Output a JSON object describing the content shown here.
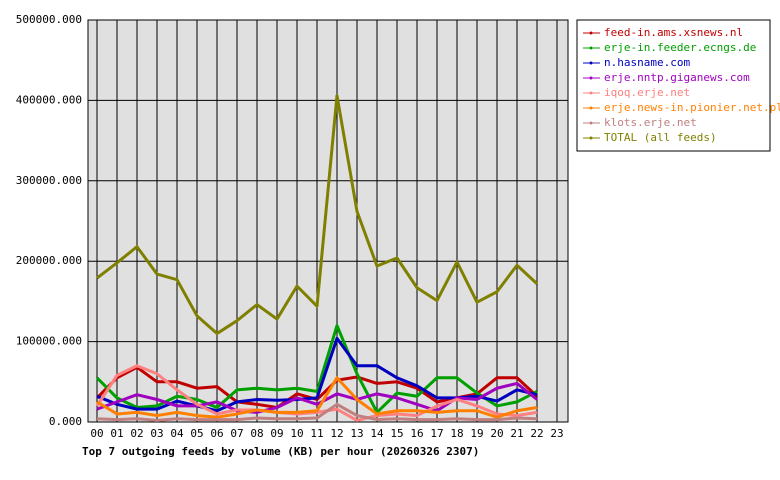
{
  "chart_data": {
    "type": "line",
    "title": "Top 7 outgoing feeds by volume (KB) per hour (20260326 2307)",
    "categories": [
      "00",
      "01",
      "02",
      "03",
      "04",
      "05",
      "06",
      "07",
      "08",
      "09",
      "10",
      "11",
      "12",
      "13",
      "14",
      "15",
      "16",
      "17",
      "18",
      "19",
      "20",
      "21",
      "22",
      "23"
    ],
    "ylim": [
      0,
      500000
    ],
    "yticks": [
      {
        "value": 0,
        "label": "0.000"
      },
      {
        "value": 100000,
        "label": "100000.000"
      },
      {
        "value": 200000,
        "label": "200000.000"
      },
      {
        "value": 300000,
        "label": "300000.000"
      },
      {
        "value": 400000,
        "label": "400000.000"
      },
      {
        "value": 500000,
        "label": "500000.000"
      }
    ],
    "grid": true,
    "legend": "right",
    "series": [
      {
        "name": "feed-in.ams.xsnews.nl",
        "color": "#c00000",
        "values": [
          30000,
          55000,
          68000,
          50000,
          50000,
          42000,
          44000,
          25000,
          22000,
          18000,
          35000,
          28000,
          52000,
          56000,
          48000,
          50000,
          42000,
          25000,
          30000,
          35000,
          55000,
          55000,
          32000,
          null
        ]
      },
      {
        "name": "erje-in.feeder.ecngs.de",
        "color": "#00a000",
        "values": [
          55000,
          30000,
          18000,
          20000,
          32000,
          28000,
          18000,
          40000,
          42000,
          40000,
          42000,
          38000,
          120000,
          60000,
          12000,
          36000,
          32000,
          55000,
          55000,
          36000,
          20000,
          25000,
          38000,
          null
        ]
      },
      {
        "name": "n.hasname.com",
        "color": "#0000c0",
        "values": [
          32000,
          22000,
          16000,
          16000,
          26000,
          20000,
          14000,
          25000,
          28000,
          27000,
          28000,
          30000,
          104000,
          70000,
          70000,
          55000,
          45000,
          30000,
          30000,
          32000,
          26000,
          40000,
          34000,
          null
        ]
      },
      {
        "name": "erje.nntp.giganews.com",
        "color": "#a000c0",
        "values": [
          16000,
          25000,
          34000,
          28000,
          20000,
          20000,
          25000,
          14000,
          12000,
          18000,
          30000,
          22000,
          35000,
          28000,
          35000,
          30000,
          22000,
          14000,
          30000,
          28000,
          42000,
          48000,
          28000,
          null
        ]
      },
      {
        "name": "iqoq.erje.net",
        "color": "#ff8080",
        "values": [
          20000,
          58000,
          70000,
          60000,
          40000,
          22000,
          10000,
          15000,
          15000,
          12000,
          10000,
          12000,
          16000,
          2000,
          8000,
          10000,
          8000,
          20000,
          28000,
          20000,
          10000,
          8000,
          12000,
          null
        ]
      },
      {
        "name": "erje.news-in.pionier.net.pl",
        "color": "#ff8000",
        "values": [
          25000,
          10000,
          12000,
          8000,
          12000,
          8000,
          6000,
          10000,
          15000,
          12000,
          12000,
          14000,
          55000,
          28000,
          10000,
          14000,
          14000,
          12000,
          14000,
          14000,
          6000,
          14000,
          18000,
          null
        ]
      },
      {
        "name": "klots.erje.net",
        "color": "#c08080",
        "values": [
          4000,
          3000,
          4000,
          2000,
          4000,
          3000,
          3000,
          3000,
          5000,
          4000,
          4000,
          5000,
          22000,
          8000,
          3000,
          4000,
          3000,
          3000,
          4000,
          3000,
          3000,
          5000,
          4000,
          null
        ]
      },
      {
        "name": "TOTAL (all feeds)",
        "color": "#808000",
        "values": [
          179000,
          198000,
          218000,
          184000,
          177000,
          132000,
          110000,
          126000,
          146000,
          128000,
          169000,
          144000,
          406000,
          262000,
          194000,
          204000,
          167000,
          151000,
          199000,
          149000,
          162000,
          195000,
          172000,
          null
        ]
      }
    ]
  }
}
